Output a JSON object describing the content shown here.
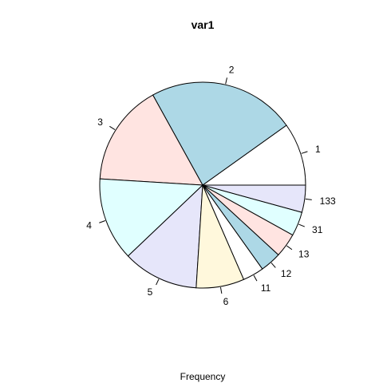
{
  "chart_data": {
    "type": "pie",
    "title": "var1",
    "xlabel": "Frequency",
    "start_angle_deg": 0,
    "direction": "counterclockwise",
    "slices": [
      {
        "label": "1",
        "value": 9.38,
        "color": "#FFFFFF"
      },
      {
        "label": "2",
        "value": 22.01,
        "color": "#ADD8E6"
      },
      {
        "label": "3",
        "value": 15.19,
        "color": "#FFE4E1"
      },
      {
        "label": "4",
        "value": 12.42,
        "color": "#E0FFFF"
      },
      {
        "label": "5",
        "value": 11.3,
        "color": "#E6E6FA"
      },
      {
        "label": "6",
        "value": 7.17,
        "color": "#FFF8DC"
      },
      {
        "label": "11",
        "value": 3.15,
        "color": "#FFFFFF"
      },
      {
        "label": "12",
        "value": 3.14,
        "color": "#ADD8E6"
      },
      {
        "label": "13",
        "value": 3.6,
        "color": "#FFE4E1"
      },
      {
        "label": "31",
        "value": 3.6,
        "color": "#E0FFFF"
      },
      {
        "label": "133",
        "value": 4.05,
        "color": "#E6E6FA"
      }
    ]
  }
}
